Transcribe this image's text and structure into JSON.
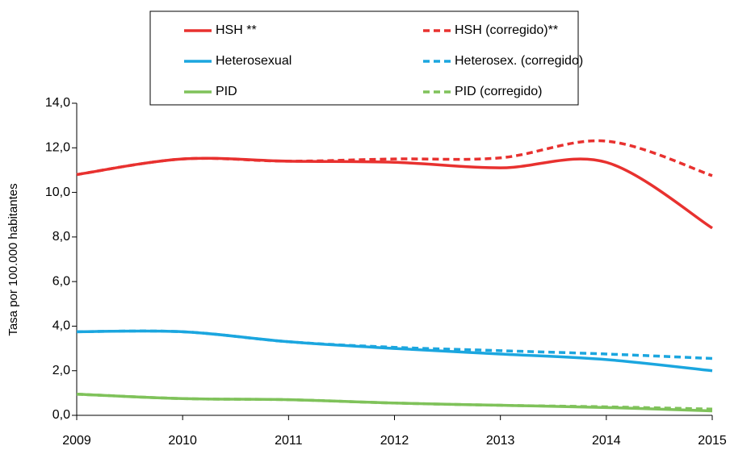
{
  "chart_data": {
    "type": "line",
    "y_label": "Tasa  por 100.000 habitantes",
    "x": [
      2009,
      2010,
      2011,
      2012,
      2013,
      2014,
      2015
    ],
    "xlim": [
      2009,
      2015
    ],
    "xticks": [
      2009,
      2010,
      2011,
      2012,
      2013,
      2014,
      2015
    ],
    "ylim": [
      0,
      14
    ],
    "yticks": [
      {
        "value": 0,
        "label": "0,0"
      },
      {
        "value": 2,
        "label": "2,0"
      },
      {
        "value": 4,
        "label": "4,0"
      },
      {
        "value": 6,
        "label": "6,0"
      },
      {
        "value": 8,
        "label": "8,0"
      },
      {
        "value": 10,
        "label": "10,0"
      },
      {
        "value": 12,
        "label": "12,0"
      },
      {
        "value": 14,
        "label": "14,0"
      }
    ],
    "grid": false,
    "legend": "top",
    "smooth": true,
    "series": [
      {
        "name": "HSH **",
        "color": "#e8312f",
        "dashed": false,
        "values": [
          10.8,
          11.5,
          11.4,
          11.35,
          11.1,
          11.35,
          8.4
        ]
      },
      {
        "name": "HSH (corregido)**",
        "color": "#e8312f",
        "dashed": true,
        "values": [
          10.8,
          11.5,
          11.4,
          11.5,
          11.55,
          12.3,
          10.75
        ]
      },
      {
        "name": "Heterosexual",
        "color": "#1ba6df",
        "dashed": false,
        "values": [
          3.75,
          3.75,
          3.3,
          3.0,
          2.75,
          2.5,
          2.0
        ]
      },
      {
        "name": "Heterosex. (corregido)",
        "color": "#1ba6df",
        "dashed": true,
        "values": [
          3.75,
          3.75,
          3.3,
          3.05,
          2.9,
          2.75,
          2.55
        ]
      },
      {
        "name": "PID",
        "color": "#7fc25a",
        "dashed": false,
        "values": [
          0.95,
          0.75,
          0.7,
          0.55,
          0.45,
          0.35,
          0.2
        ]
      },
      {
        "name": "PID (corregido)",
        "color": "#7fc25a",
        "dashed": true,
        "values": [
          0.95,
          0.75,
          0.7,
          0.55,
          0.45,
          0.38,
          0.28
        ]
      }
    ]
  }
}
